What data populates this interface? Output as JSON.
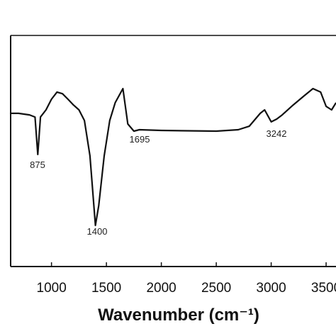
{
  "chart_data": {
    "type": "line",
    "x_label": "Wavenumber (cm⁻¹)",
    "xlim": [
      628,
      3590
    ],
    "xticks": [
      1000,
      1500,
      2000,
      2500,
      3000,
      3500
    ],
    "ylim": [
      0,
      100
    ],
    "series": [
      {
        "color": "#111111",
        "x": [
          628,
          700,
          800,
          850,
          875,
          900,
          950,
          1000,
          1050,
          1100,
          1150,
          1200,
          1250,
          1300,
          1350,
          1400,
          1430,
          1480,
          1530,
          1580,
          1650,
          1695,
          1750,
          1800,
          2000,
          2500,
          2700,
          2800,
          2900,
          2940,
          3000,
          3050,
          3100,
          3200,
          3300,
          3380,
          3450,
          3500,
          3550,
          3590
        ],
        "values": [
          66.3,
          66.3,
          65.6,
          64.7,
          48.5,
          64.7,
          67.8,
          72.4,
          75.5,
          74.8,
          72.4,
          69.9,
          67.8,
          63.2,
          47.9,
          17.8,
          26.4,
          47.9,
          63.2,
          70.9,
          77.0,
          61.7,
          58.6,
          59.2,
          58.9,
          58.6,
          59.2,
          60.7,
          66.3,
          67.8,
          62.6,
          63.8,
          65.6,
          69.9,
          73.9,
          77.0,
          75.5,
          69.3,
          67.8,
          70.9
        ]
      }
    ],
    "annotations": [
      "875",
      "1400",
      "1695",
      "3242"
    ]
  }
}
